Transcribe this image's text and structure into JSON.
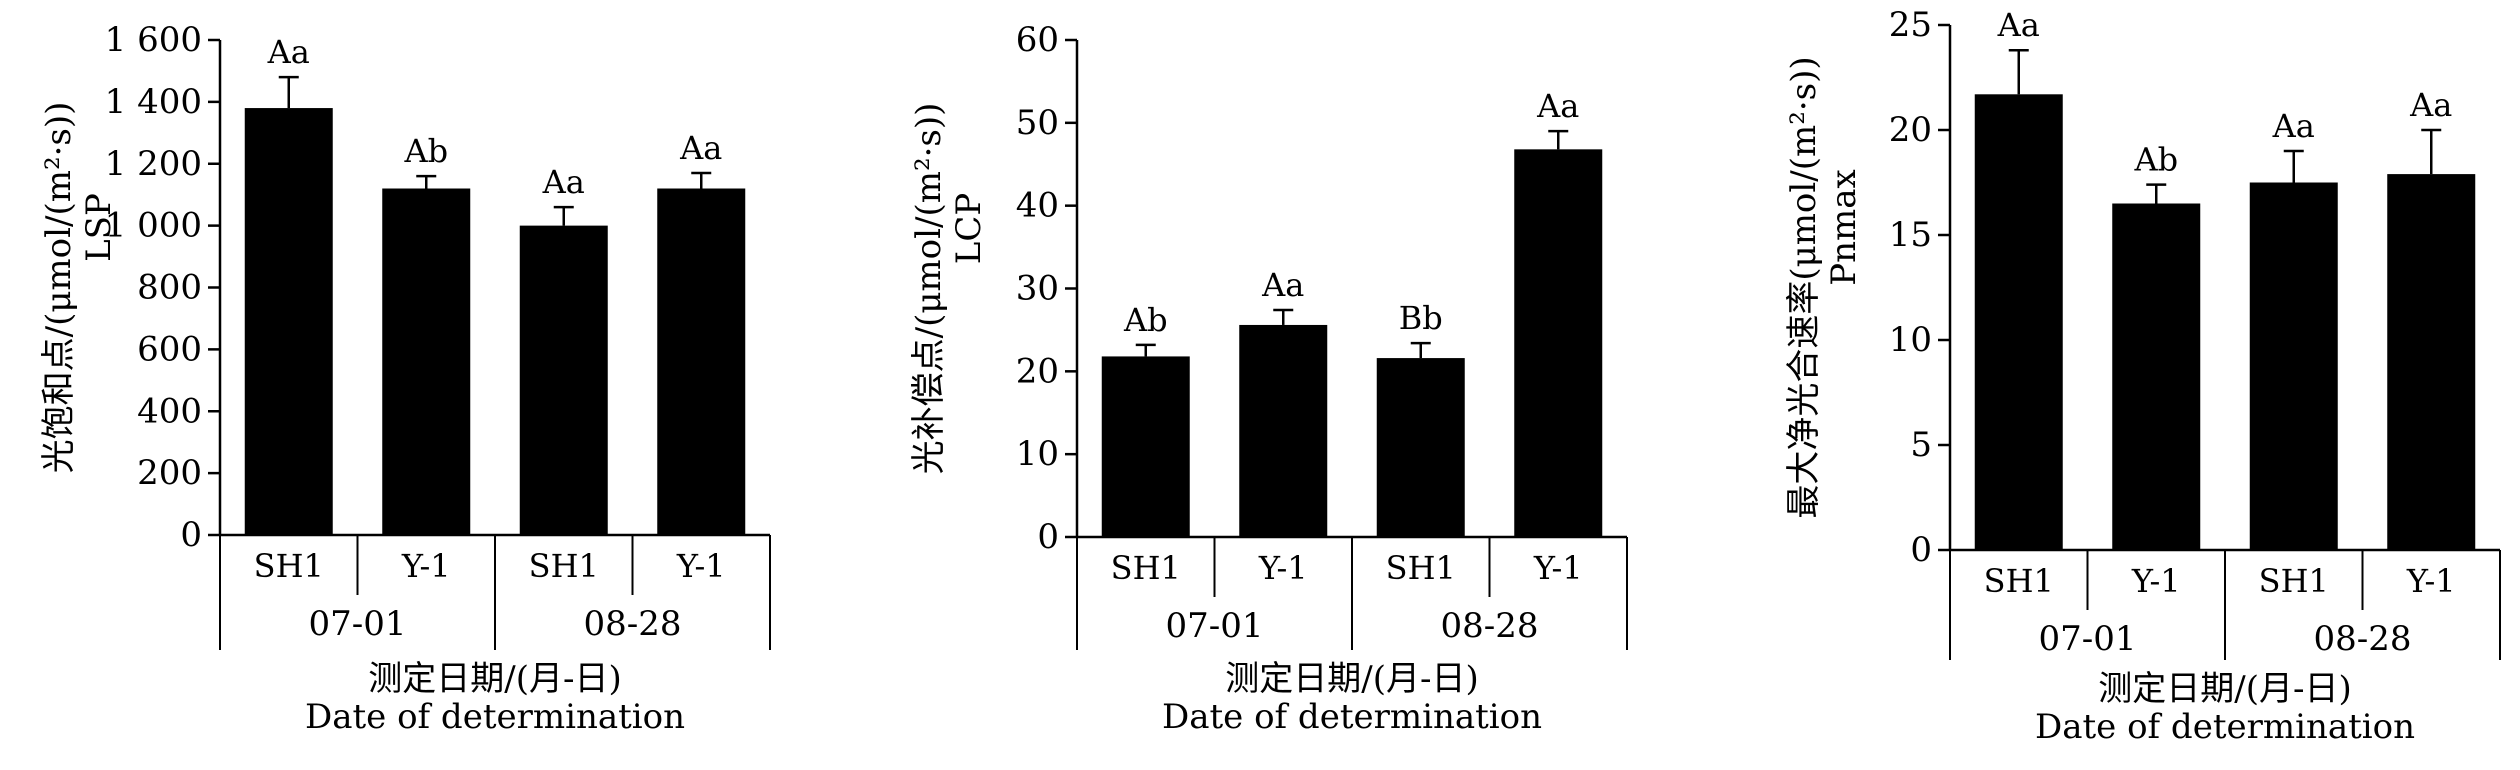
{
  "chart_data": [
    {
      "type": "bar",
      "ylabel": "光饱和点/(μmol/(m²·s))",
      "ylabel_sub": "LSP",
      "xlabel": "测定日期/(月-日)",
      "xlabel_en": "Date of determination",
      "ylim": [
        0,
        1600
      ],
      "yticks": [
        0,
        200,
        400,
        600,
        800,
        1000,
        1200,
        1400,
        1600
      ],
      "ytick_labels": [
        "0",
        "200",
        "400",
        "600",
        "800",
        "1 000",
        "1 200",
        "1 400",
        "1 600"
      ],
      "categories": [
        "SH1",
        "Y-1",
        "SH1",
        "Y-1"
      ],
      "groups": [
        {
          "label": "07-01",
          "span": 2
        },
        {
          "label": "08-28",
          "span": 2
        }
      ],
      "values": [
        1380,
        1120,
        1000,
        1120
      ],
      "errors": [
        100,
        40,
        60,
        50
      ],
      "labels": [
        "Aa",
        "Ab",
        "Aa",
        "Aa"
      ]
    },
    {
      "type": "bar",
      "ylabel": "光补偿点/(μmol/(m²·s))",
      "ylabel_sub": "LCP",
      "xlabel": "测定日期/(月-日)",
      "xlabel_en": "Date of determination",
      "ylim": [
        0,
        60
      ],
      "yticks": [
        0,
        10,
        20,
        30,
        40,
        50,
        60
      ],
      "ytick_labels": [
        "0",
        "10",
        "20",
        "30",
        "40",
        "50",
        "60"
      ],
      "categories": [
        "SH1",
        "Y-1",
        "SH1",
        "Y-1"
      ],
      "groups": [
        {
          "label": "07-01",
          "span": 2
        },
        {
          "label": "08-28",
          "span": 2
        }
      ],
      "values": [
        21.8,
        25.6,
        21.6,
        46.8
      ],
      "errors": [
        1.4,
        1.8,
        1.8,
        2.2
      ],
      "labels": [
        "Ab",
        "Aa",
        "Bb",
        "Aa"
      ]
    },
    {
      "type": "bar",
      "ylabel": "最大净光合速率(μmol/(m²·s))",
      "ylabel_sub": "Pnmax",
      "xlabel": "测定日期/(月-日)",
      "xlabel_en": "Date of determination",
      "ylim": [
        0,
        25
      ],
      "yticks": [
        0,
        5,
        10,
        15,
        20,
        25
      ],
      "ytick_labels": [
        "0",
        "5",
        "10",
        "15",
        "20",
        "25"
      ],
      "categories": [
        "SH1",
        "Y-1",
        "SH1",
        "Y-1"
      ],
      "groups": [
        {
          "label": "07-01",
          "span": 2
        },
        {
          "label": "08-28",
          "span": 2
        }
      ],
      "values": [
        21.7,
        16.5,
        17.5,
        17.9
      ],
      "errors": [
        2.1,
        0.9,
        1.5,
        2.1
      ],
      "labels": [
        "Aa",
        "Ab",
        "Aa",
        "Aa"
      ]
    }
  ]
}
